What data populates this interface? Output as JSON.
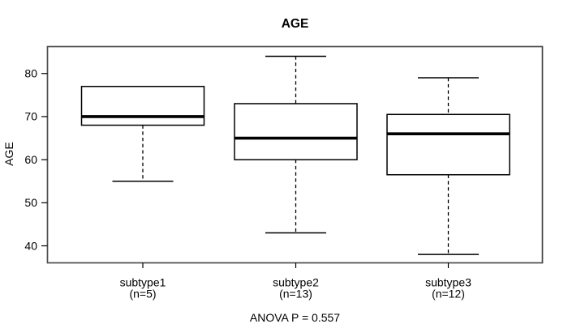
{
  "chart_data": {
    "type": "boxplot",
    "title": "AGE",
    "xlabel": "",
    "ylabel": "AGE",
    "annotation": "ANOVA P = 0.557",
    "ylim": [
      36.05,
      86.25
    ],
    "yticks": [
      40,
      50,
      60,
      70,
      80
    ],
    "grid": false,
    "categories": [
      "subtype1",
      "subtype2",
      "subtype3"
    ],
    "groups": [
      {
        "label": "subtype1",
        "sublabel": "(n=5)",
        "n": 5,
        "whisker_low": 55,
        "q1": 68,
        "median": 70,
        "q3": 77,
        "whisker_high": 77
      },
      {
        "label": "subtype2",
        "sublabel": "(n=13)",
        "n": 13,
        "whisker_low": 43,
        "q1": 60,
        "median": 65,
        "q3": 73,
        "whisker_high": 84
      },
      {
        "label": "subtype3",
        "sublabel": "(n=12)",
        "n": 12,
        "whisker_low": 38,
        "q1": 56.5,
        "median": 66,
        "q3": 70.5,
        "whisker_high": 79
      }
    ],
    "colors": {
      "line": "#000000",
      "box_fill": "#ffffff",
      "frame": "#4d4d4d",
      "background": "#ffffff"
    }
  }
}
